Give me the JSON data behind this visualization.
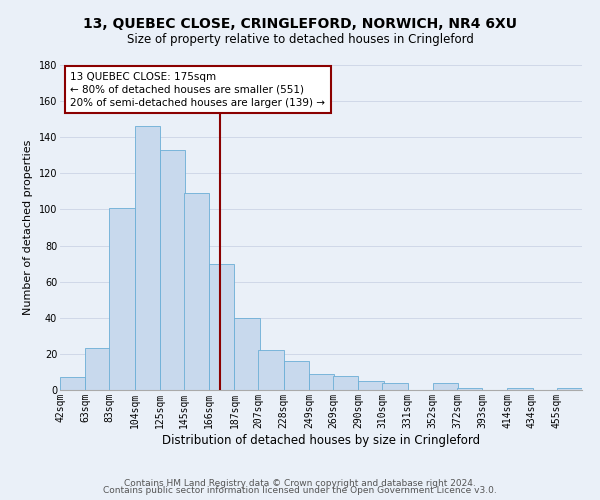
{
  "title1": "13, QUEBEC CLOSE, CRINGLEFORD, NORWICH, NR4 6XU",
  "title2": "Size of property relative to detached houses in Cringleford",
  "xlabel": "Distribution of detached houses by size in Cringleford",
  "ylabel": "Number of detached properties",
  "bin_labels": [
    "42sqm",
    "63sqm",
    "83sqm",
    "104sqm",
    "125sqm",
    "145sqm",
    "166sqm",
    "187sqm",
    "207sqm",
    "228sqm",
    "249sqm",
    "269sqm",
    "290sqm",
    "310sqm",
    "331sqm",
    "352sqm",
    "372sqm",
    "393sqm",
    "414sqm",
    "434sqm",
    "455sqm"
  ],
  "bin_edges": [
    42,
    63,
    83,
    104,
    125,
    145,
    166,
    187,
    207,
    228,
    249,
    269,
    290,
    310,
    331,
    352,
    372,
    393,
    414,
    434,
    455
  ],
  "counts": [
    7,
    23,
    101,
    146,
    133,
    109,
    70,
    40,
    22,
    16,
    9,
    8,
    5,
    4,
    0,
    4,
    1,
    0,
    1,
    0,
    1
  ],
  "bar_facecolor": "#c8d9ed",
  "bar_edgecolor": "#6baed6",
  "property_line_x": 175,
  "property_line_color": "#8b0000",
  "annotation_line1": "13 QUEBEC CLOSE: 175sqm",
  "annotation_line2": "← 80% of detached houses are smaller (551)",
  "annotation_line3": "20% of semi-detached houses are larger (139) →",
  "annotation_box_edgecolor": "#8b0000",
  "annotation_box_facecolor": "white",
  "footer1": "Contains HM Land Registry data © Crown copyright and database right 2024.",
  "footer2": "Contains public sector information licensed under the Open Government Licence v3.0.",
  "ylim": [
    0,
    180
  ],
  "yticks": [
    0,
    20,
    40,
    60,
    80,
    100,
    120,
    140,
    160,
    180
  ],
  "grid_color": "#d0d8e8",
  "background_color": "#eaf0f8",
  "title1_fontsize": 10,
  "title2_fontsize": 8.5,
  "xlabel_fontsize": 8.5,
  "ylabel_fontsize": 8,
  "tick_fontsize": 7,
  "footer_fontsize": 6.5,
  "annot_fontsize": 7.5
}
